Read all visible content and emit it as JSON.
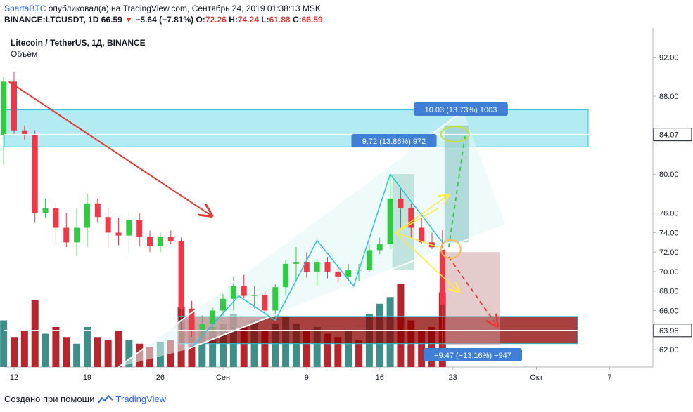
{
  "header": {
    "author": "SpartaBTC",
    "published_text": "опубликовал(а) на TradingView.com, Сентябрь 24, 2019 01:38:13 MSK",
    "symbol_line": "BINANCE:LTCUSDT, 1D",
    "last_price": "66.59",
    "change": "−5.64 (−7.81%)",
    "o_label": "O:",
    "o_value": "72.26",
    "h_label": "H:",
    "h_value": "74.24",
    "l_label": "L:",
    "l_value": "61.88",
    "c_label": "C:",
    "c_value": "66.59"
  },
  "legend": {
    "title": "Litecoin / TetherUS, 1Д, BINANCE",
    "volume_label": "Объём"
  },
  "footer": {
    "created_with": "Создано при помощи",
    "brand": "TradingView"
  },
  "colors": {
    "up": "#2ecc40",
    "down": "#f23645",
    "volume_up": "#3d8f8a",
    "volume_down": "#b8252d",
    "channel_fill": "#e0f7f5",
    "channel_border": "#26c6da",
    "zone_top_fill": "#26c6da",
    "zone_bottom_fill": "#8b0000",
    "arrow_red": "#e53935",
    "arrow_yellow": "#ffeb3b",
    "label_blue": "#3f7fd6"
  },
  "chart_data": {
    "type": "candlestick",
    "title": "Litecoin / TetherUS, 1Д, BINANCE",
    "ylim": [
      60.5,
      94
    ],
    "y_ticks": [
      "62.00",
      "64.00",
      "66.00",
      "68.00",
      "70.00",
      "72.00",
      "74.00",
      "76.00",
      "80.00",
      "84.00",
      "88.00",
      "92.00"
    ],
    "x_ticks": [
      {
        "label": "12",
        "day": 0
      },
      {
        "label": "19",
        "day": 7
      },
      {
        "label": "26",
        "day": 14
      },
      {
        "label": "Сен",
        "day": 20
      },
      {
        "label": "9",
        "day": 28
      },
      {
        "label": "16",
        "day": 35
      },
      {
        "label": "23",
        "day": 42
      },
      {
        "label": "Окт",
        "day": 50
      },
      {
        "label": "7",
        "day": 57
      }
    ],
    "price_marks": [
      {
        "label": "84.07",
        "value": 84.07
      },
      {
        "label": "63.96",
        "value": 63.96
      }
    ],
    "candles": [
      {
        "day": -1,
        "o": 84,
        "h": 90,
        "l": 81,
        "c": 89.5
      },
      {
        "day": 0,
        "o": 89.5,
        "h": 90.5,
        "l": 84,
        "c": 84.5
      },
      {
        "day": 1,
        "o": 84.5,
        "h": 85,
        "l": 83.5,
        "c": 84
      },
      {
        "day": 2,
        "o": 84,
        "h": 84.5,
        "l": 75,
        "c": 76
      },
      {
        "day": 3,
        "o": 76,
        "h": 77.5,
        "l": 75.5,
        "c": 76.5
      },
      {
        "day": 4,
        "o": 76.5,
        "h": 77,
        "l": 72.8,
        "c": 74.5
      },
      {
        "day": 5,
        "o": 74.5,
        "h": 76,
        "l": 72.5,
        "c": 73
      },
      {
        "day": 6,
        "o": 73,
        "h": 76.5,
        "l": 71.6,
        "c": 74.5
      },
      {
        "day": 7,
        "o": 74.5,
        "h": 78,
        "l": 72.5,
        "c": 77
      },
      {
        "day": 8,
        "o": 77,
        "h": 77.5,
        "l": 75,
        "c": 75.6
      },
      {
        "day": 9,
        "o": 75.6,
        "h": 76.5,
        "l": 72.5,
        "c": 74
      },
      {
        "day": 10,
        "o": 74,
        "h": 75.5,
        "l": 72.7,
        "c": 73.7
      },
      {
        "day": 11,
        "o": 73.7,
        "h": 76,
        "l": 71.9,
        "c": 75.3
      },
      {
        "day": 12,
        "o": 75.3,
        "h": 76,
        "l": 72.6,
        "c": 73.6
      },
      {
        "day": 13,
        "o": 73.6,
        "h": 74.2,
        "l": 72,
        "c": 72.6
      },
      {
        "day": 14,
        "o": 72.6,
        "h": 74,
        "l": 72,
        "c": 73.6
      },
      {
        "day": 15,
        "o": 73.6,
        "h": 74.2,
        "l": 72.8,
        "c": 73.1
      },
      {
        "day": 16,
        "o": 73.1,
        "h": 73.5,
        "l": 64,
        "c": 66.2
      },
      {
        "day": 17,
        "o": 66.2,
        "h": 67,
        "l": 63.3,
        "c": 64
      },
      {
        "day": 18,
        "o": 64,
        "h": 65.5,
        "l": 63.2,
        "c": 64.6
      },
      {
        "day": 19,
        "o": 64.6,
        "h": 66.3,
        "l": 63.8,
        "c": 66
      },
      {
        "day": 20,
        "o": 66,
        "h": 67.7,
        "l": 65.5,
        "c": 67.2
      },
      {
        "day": 21,
        "o": 67.2,
        "h": 69.5,
        "l": 66,
        "c": 68.5
      },
      {
        "day": 22,
        "o": 68.5,
        "h": 69.7,
        "l": 67.3,
        "c": 67.5
      },
      {
        "day": 23,
        "o": 67.5,
        "h": 68.5,
        "l": 66.2,
        "c": 67.6
      },
      {
        "day": 24,
        "o": 67.6,
        "h": 68,
        "l": 65.8,
        "c": 66
      },
      {
        "day": 25,
        "o": 66,
        "h": 68.7,
        "l": 65.2,
        "c": 68.4
      },
      {
        "day": 26,
        "o": 68.4,
        "h": 71.2,
        "l": 67.5,
        "c": 70.8
      },
      {
        "day": 27,
        "o": 70.8,
        "h": 72.5,
        "l": 69,
        "c": 71
      },
      {
        "day": 28,
        "o": 71,
        "h": 72,
        "l": 69.4,
        "c": 70
      },
      {
        "day": 29,
        "o": 70,
        "h": 71.3,
        "l": 68.5,
        "c": 71
      },
      {
        "day": 30,
        "o": 71,
        "h": 71.5,
        "l": 69.3,
        "c": 70
      },
      {
        "day": 31,
        "o": 70,
        "h": 70.5,
        "l": 68.9,
        "c": 69.5
      },
      {
        "day": 32,
        "o": 69.5,
        "h": 70.8,
        "l": 69,
        "c": 70.2
      },
      {
        "day": 33,
        "o": 70.2,
        "h": 70.8,
        "l": 69,
        "c": 70.2
      },
      {
        "day": 34,
        "o": 70.2,
        "h": 72.8,
        "l": 70,
        "c": 72.2
      },
      {
        "day": 35,
        "o": 72.2,
        "h": 73.5,
        "l": 71.8,
        "c": 72.8
      },
      {
        "day": 36,
        "o": 72.8,
        "h": 80,
        "l": 72.3,
        "c": 77.5
      },
      {
        "day": 37,
        "o": 77.5,
        "h": 78.5,
        "l": 74.5,
        "c": 76.5
      },
      {
        "day": 38,
        "o": 76.5,
        "h": 77,
        "l": 73.5,
        "c": 74.5
      },
      {
        "day": 39,
        "o": 74.5,
        "h": 75.5,
        "l": 72.8,
        "c": 73
      },
      {
        "day": 40,
        "o": 73,
        "h": 74,
        "l": 72.3,
        "c": 72.5
      },
      {
        "day": 41,
        "o": 72.26,
        "h": 74.24,
        "l": 61.88,
        "c": 66.59
      }
    ],
    "volumes": [
      {
        "day": -1,
        "v": 70,
        "up": true
      },
      {
        "day": 0,
        "v": 45,
        "up": false
      },
      {
        "day": 1,
        "v": 55,
        "up": false
      },
      {
        "day": 2,
        "v": 100,
        "up": false
      },
      {
        "day": 3,
        "v": 50,
        "up": true
      },
      {
        "day": 4,
        "v": 60,
        "up": false
      },
      {
        "day": 5,
        "v": 45,
        "up": false
      },
      {
        "day": 6,
        "v": 35,
        "up": true
      },
      {
        "day": 7,
        "v": 60,
        "up": true
      },
      {
        "day": 8,
        "v": 45,
        "up": false
      },
      {
        "day": 9,
        "v": 40,
        "up": false
      },
      {
        "day": 10,
        "v": 55,
        "up": false
      },
      {
        "day": 11,
        "v": 40,
        "up": true
      },
      {
        "day": 12,
        "v": 35,
        "up": false
      },
      {
        "day": 13,
        "v": 30,
        "up": false
      },
      {
        "day": 14,
        "v": 38,
        "up": true
      },
      {
        "day": 15,
        "v": 40,
        "up": false
      },
      {
        "day": 16,
        "v": 90,
        "up": false
      },
      {
        "day": 17,
        "v": 70,
        "up": false
      },
      {
        "day": 18,
        "v": 55,
        "up": true
      },
      {
        "day": 19,
        "v": 60,
        "up": true
      },
      {
        "day": 20,
        "v": 65,
        "up": true
      },
      {
        "day": 21,
        "v": 80,
        "up": true
      },
      {
        "day": 22,
        "v": 60,
        "up": false
      },
      {
        "day": 23,
        "v": 70,
        "up": true
      },
      {
        "day": 24,
        "v": 55,
        "up": false
      },
      {
        "day": 25,
        "v": 65,
        "up": true
      },
      {
        "day": 26,
        "v": 75,
        "up": true
      },
      {
        "day": 27,
        "v": 65,
        "up": true
      },
      {
        "day": 28,
        "v": 55,
        "up": false
      },
      {
        "day": 29,
        "v": 60,
        "up": true
      },
      {
        "day": 30,
        "v": 50,
        "up": false
      },
      {
        "day": 31,
        "v": 45,
        "up": false
      },
      {
        "day": 32,
        "v": 55,
        "up": true
      },
      {
        "day": 33,
        "v": 40,
        "up": false
      },
      {
        "day": 34,
        "v": 80,
        "up": true
      },
      {
        "day": 35,
        "v": 95,
        "up": true
      },
      {
        "day": 36,
        "v": 105,
        "up": true
      },
      {
        "day": 37,
        "v": 125,
        "up": false
      },
      {
        "day": 38,
        "v": 70,
        "up": false
      },
      {
        "day": 39,
        "v": 55,
        "up": false
      },
      {
        "day": 40,
        "v": 60,
        "up": false
      },
      {
        "day": 41,
        "v": 112,
        "up": false
      }
    ],
    "annotations": {
      "label_top": "10.03 (13.73%) 1003",
      "label_mid": "9.72 (13.86%) 972",
      "label_bottom": "−9.47 (−13.16%) −947"
    }
  }
}
